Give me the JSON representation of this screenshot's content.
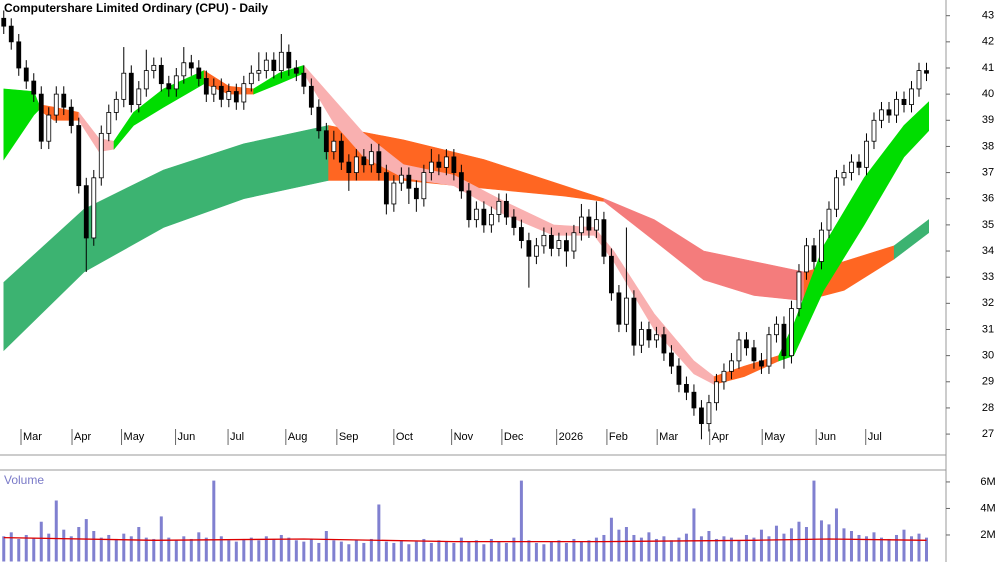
{
  "chart_data": [
    {
      "type": "candlestick",
      "title": "Computershare Limited Ordinary (CPU) - Daily",
      "xlim": [
        -0.5,
        125.6
      ],
      "ylim": [
        26.2,
        43.6
      ],
      "yticks": [
        27,
        28,
        29,
        30,
        31,
        32,
        33,
        34,
        35,
        36,
        37,
        38,
        39,
        40,
        41,
        42,
        43
      ],
      "xticks": [
        {
          "value": 2.3,
          "label": "Mar"
        },
        {
          "value": 9.1,
          "label": "Apr"
        },
        {
          "value": 15.7,
          "label": "May"
        },
        {
          "value": 22.9,
          "label": "Jun"
        },
        {
          "value": 29.9,
          "label": "Jul"
        },
        {
          "value": 37.6,
          "label": "Aug"
        },
        {
          "value": 44.4,
          "label": "Sep"
        },
        {
          "value": 52,
          "label": "Oct"
        },
        {
          "value": 59.7,
          "label": "Nov"
        },
        {
          "value": 66.4,
          "label": "Dec"
        },
        {
          "value": 73.7,
          "label": "2026"
        },
        {
          "value": 80.4,
          "label": "Feb"
        },
        {
          "value": 87.1,
          "label": "Mar"
        },
        {
          "value": 94.1,
          "label": "Apr"
        },
        {
          "value": 101.1,
          "label": "May"
        },
        {
          "value": 108.3,
          "label": "Jun"
        },
        {
          "value": 114.9,
          "label": "Jul"
        }
      ],
      "up_color": "#ffffff",
      "down_color": "#000000",
      "ohlc": [
        [
          42.9,
          43.2,
          42.3,
          42.6
        ],
        [
          42.6,
          42.9,
          41.7,
          42.0
        ],
        [
          42.0,
          42.3,
          40.7,
          41.0
        ],
        [
          41.0,
          41.3,
          40.2,
          40.5
        ],
        [
          40.5,
          40.8,
          39.7,
          40.0
        ],
        [
          40.0,
          40.3,
          37.9,
          38.2
        ],
        [
          38.2,
          39.5,
          37.9,
          39.2
        ],
        [
          39.2,
          40.3,
          38.9,
          40.0
        ],
        [
          40.0,
          40.3,
          39.2,
          39.5
        ],
        [
          39.5,
          39.8,
          38.5,
          38.8
        ],
        [
          38.8,
          39.1,
          36.2,
          36.5
        ],
        [
          36.5,
          36.8,
          33.2,
          34.5
        ],
        [
          34.5,
          37.1,
          34.2,
          36.8
        ],
        [
          36.8,
          38.8,
          36.5,
          38.5
        ],
        [
          38.5,
          39.6,
          38.2,
          39.3
        ],
        [
          39.3,
          40.1,
          39.0,
          39.8
        ],
        [
          39.8,
          41.8,
          39.5,
          40.8
        ],
        [
          40.8,
          41.1,
          39.3,
          39.6
        ],
        [
          39.6,
          40.5,
          39.3,
          40.2
        ],
        [
          40.2,
          41.7,
          39.9,
          40.9
        ],
        [
          40.9,
          41.4,
          40.6,
          41.1
        ],
        [
          41.1,
          41.4,
          40.1,
          40.4
        ],
        [
          40.4,
          40.7,
          39.9,
          40.2
        ],
        [
          40.2,
          41.0,
          39.9,
          40.7
        ],
        [
          40.7,
          41.8,
          40.4,
          41.2
        ],
        [
          41.2,
          41.5,
          40.7,
          41.0
        ],
        [
          41.0,
          41.3,
          40.3,
          40.6
        ],
        [
          40.6,
          40.9,
          39.7,
          40.0
        ],
        [
          40.0,
          40.6,
          39.7,
          40.3
        ],
        [
          40.3,
          40.6,
          39.5,
          39.8
        ],
        [
          39.8,
          40.4,
          39.5,
          40.1
        ],
        [
          40.1,
          40.4,
          39.4,
          39.7
        ],
        [
          39.7,
          40.7,
          39.4,
          40.4
        ],
        [
          40.4,
          41.1,
          40.1,
          40.8
        ],
        [
          40.8,
          41.6,
          40.5,
          40.9
        ],
        [
          40.9,
          41.6,
          40.6,
          41.3
        ],
        [
          41.3,
          41.6,
          40.6,
          40.9
        ],
        [
          40.9,
          42.3,
          40.6,
          41.6
        ],
        [
          41.6,
          41.9,
          40.7,
          41.0
        ],
        [
          41.0,
          41.3,
          40.5,
          40.8
        ],
        [
          40.8,
          41.1,
          40.0,
          40.3
        ],
        [
          40.3,
          40.6,
          39.2,
          39.5
        ],
        [
          39.5,
          39.8,
          38.3,
          38.6
        ],
        [
          38.6,
          38.9,
          37.5,
          37.8
        ],
        [
          37.8,
          38.6,
          37.5,
          38.2
        ],
        [
          38.2,
          38.5,
          37.1,
          37.4
        ],
        [
          37.4,
          37.7,
          36.3,
          37.0
        ],
        [
          37.0,
          37.9,
          36.7,
          37.6
        ],
        [
          37.6,
          37.9,
          37.0,
          37.3
        ],
        [
          37.3,
          38.1,
          37.0,
          37.8
        ],
        [
          37.8,
          38.1,
          36.7,
          37.0
        ],
        [
          37.0,
          37.3,
          35.4,
          35.8
        ],
        [
          35.8,
          36.9,
          35.5,
          36.6
        ],
        [
          36.6,
          37.2,
          36.3,
          36.9
        ],
        [
          36.9,
          37.2,
          35.8,
          36.4
        ],
        [
          36.4,
          36.7,
          35.5,
          36.0
        ],
        [
          36.0,
          37.3,
          35.7,
          37.0
        ],
        [
          37.0,
          37.9,
          36.7,
          37.4
        ],
        [
          37.4,
          37.7,
          36.9,
          37.2
        ],
        [
          37.2,
          37.9,
          36.9,
          37.6
        ],
        [
          37.6,
          37.9,
          36.7,
          37.0
        ],
        [
          37.0,
          37.3,
          36.0,
          36.3
        ],
        [
          36.3,
          36.6,
          34.9,
          35.2
        ],
        [
          35.2,
          35.9,
          34.9,
          35.6
        ],
        [
          35.6,
          35.9,
          34.7,
          35.0
        ],
        [
          35.0,
          35.7,
          34.7,
          35.4
        ],
        [
          35.4,
          36.2,
          35.1,
          35.9
        ],
        [
          35.9,
          36.2,
          35.0,
          35.3
        ],
        [
          35.3,
          35.6,
          34.6,
          34.9
        ],
        [
          34.9,
          35.2,
          34.1,
          34.4
        ],
        [
          34.4,
          34.7,
          32.6,
          33.8
        ],
        [
          33.8,
          34.5,
          33.5,
          34.2
        ],
        [
          34.2,
          34.9,
          33.9,
          34.6
        ],
        [
          34.6,
          34.9,
          33.8,
          34.1
        ],
        [
          34.1,
          34.7,
          33.8,
          34.4
        ],
        [
          34.4,
          34.7,
          33.4,
          34.0
        ],
        [
          34.0,
          35.0,
          33.7,
          34.7
        ],
        [
          34.7,
          35.8,
          34.4,
          35.3
        ],
        [
          35.3,
          35.6,
          34.5,
          34.8
        ],
        [
          34.8,
          35.9,
          34.5,
          35.2
        ],
        [
          35.2,
          35.5,
          33.5,
          33.8
        ],
        [
          33.8,
          34.1,
          32.1,
          32.4
        ],
        [
          32.4,
          32.7,
          30.9,
          31.2
        ],
        [
          31.2,
          34.9,
          30.9,
          32.2
        ],
        [
          32.2,
          32.5,
          30.0,
          30.4
        ],
        [
          30.4,
          31.3,
          30.1,
          31.0
        ],
        [
          31.0,
          31.3,
          30.3,
          30.6
        ],
        [
          30.6,
          31.1,
          30.3,
          30.8
        ],
        [
          30.8,
          31.1,
          29.8,
          30.1
        ],
        [
          30.1,
          30.4,
          29.3,
          29.6
        ],
        [
          29.6,
          29.9,
          28.6,
          28.9
        ],
        [
          28.9,
          29.2,
          28.3,
          28.6
        ],
        [
          28.6,
          28.9,
          27.7,
          28.0
        ],
        [
          28.0,
          28.3,
          26.8,
          27.4
        ],
        [
          27.4,
          28.5,
          27.1,
          28.2
        ],
        [
          28.2,
          29.3,
          27.9,
          29.0
        ],
        [
          29.0,
          29.7,
          28.7,
          29.4
        ],
        [
          29.4,
          30.1,
          29.1,
          29.8
        ],
        [
          29.8,
          30.9,
          29.5,
          30.6
        ],
        [
          30.6,
          30.9,
          30.0,
          30.3
        ],
        [
          30.3,
          30.6,
          29.5,
          29.8
        ],
        [
          29.8,
          30.1,
          29.3,
          29.6
        ],
        [
          29.6,
          31.1,
          29.3,
          30.8
        ],
        [
          30.8,
          31.5,
          30.5,
          31.2
        ],
        [
          31.2,
          31.5,
          29.5,
          30.0
        ],
        [
          30.0,
          32.1,
          29.7,
          31.8
        ],
        [
          31.8,
          33.5,
          31.5,
          33.2
        ],
        [
          33.2,
          34.5,
          32.9,
          34.2
        ],
        [
          34.2,
          34.5,
          33.3,
          33.6
        ],
        [
          33.6,
          35.1,
          33.3,
          34.8
        ],
        [
          34.8,
          35.9,
          34.5,
          35.6
        ],
        [
          35.6,
          37.1,
          35.3,
          36.8
        ],
        [
          36.8,
          37.3,
          36.5,
          37.0
        ],
        [
          37.0,
          37.7,
          36.7,
          37.4
        ],
        [
          37.4,
          37.7,
          36.9,
          37.2
        ],
        [
          37.2,
          38.5,
          36.9,
          38.2
        ],
        [
          38.2,
          39.3,
          37.9,
          39.0
        ],
        [
          39.0,
          39.7,
          38.7,
          39.4
        ],
        [
          39.4,
          39.7,
          38.9,
          39.2
        ],
        [
          39.2,
          40.1,
          38.9,
          39.8
        ],
        [
          39.8,
          40.1,
          39.3,
          39.6
        ],
        [
          39.6,
          40.5,
          39.3,
          40.2
        ],
        [
          40.2,
          41.2,
          39.9,
          40.9
        ],
        [
          40.9,
          41.2,
          40.5,
          40.8
        ]
      ],
      "ribbons": [
        {
          "color": "#3cb371",
          "x": [
            0,
            10.7,
            21.3,
            32,
            43.3
          ],
          "upper": [
            32.8,
            35.6,
            37.1,
            38.1,
            38.8
          ],
          "lower": [
            30.2,
            33.2,
            34.9,
            36.0,
            36.7
          ]
        },
        {
          "color": "#ff6622",
          "x": [
            43.3,
            53.3,
            64,
            74.7,
            80
          ],
          "upper": [
            38.8,
            38.25,
            37.5,
            36.5,
            36.0
          ],
          "lower": [
            36.7,
            36.7,
            36.4,
            36.1,
            35.9
          ]
        },
        {
          "color": "#f47c7c",
          "x": [
            80,
            86.7,
            93.3,
            100,
            106.7
          ],
          "upper": [
            36.0,
            35.2,
            34.0,
            33.6,
            33.2
          ],
          "lower": [
            35.9,
            34.4,
            32.9,
            32.3,
            32.1
          ]
        },
        {
          "color": "#ff6622",
          "x": [
            106.7,
            112,
            118.7
          ],
          "upper": [
            33.2,
            33.6,
            34.2
          ],
          "lower": [
            32.1,
            32.5,
            33.7
          ]
        },
        {
          "color": "#3cb371",
          "x": [
            118.7,
            123.3
          ],
          "upper": [
            34.2,
            35.2
          ],
          "lower": [
            33.7,
            34.7
          ]
        },
        {
          "color": "#00dd00",
          "x": [
            0,
            4,
            4.7
          ],
          "upper": [
            40.2,
            40.1,
            39.6
          ],
          "lower": [
            37.5,
            39.2,
            39.4
          ]
        },
        {
          "color": "#ff6622",
          "x": [
            4.7,
            6.7,
            10
          ],
          "upper": [
            39.6,
            39.5,
            39.3
          ],
          "lower": [
            39.4,
            39.0,
            39.0
          ]
        },
        {
          "color": "#f9b0b0",
          "x": [
            10,
            12.7,
            14.7
          ],
          "upper": [
            39.3,
            38.3,
            38.2
          ],
          "lower": [
            39.0,
            37.8,
            37.9
          ]
        },
        {
          "color": "#00dd00",
          "x": [
            14.7,
            17.3,
            21.3,
            26.7
          ],
          "upper": [
            38.2,
            39.3,
            40.2,
            40.9
          ],
          "lower": [
            37.9,
            38.8,
            39.5,
            40.4
          ]
        },
        {
          "color": "#ff6622",
          "x": [
            26.7,
            30,
            33.3
          ],
          "upper": [
            40.9,
            40.3,
            40.2
          ],
          "lower": [
            40.4,
            40.0,
            40.0
          ]
        },
        {
          "color": "#00dd00",
          "x": [
            33.3,
            36.7,
            40
          ],
          "upper": [
            40.2,
            40.8,
            41.1
          ],
          "lower": [
            40.0,
            40.4,
            40.8
          ]
        },
        {
          "color": "#f9b0b0",
          "x": [
            40,
            44,
            48,
            53.3,
            60,
            66.7,
            73.3,
            78.7,
            81.3,
            86.7,
            92,
            94.7
          ],
          "upper": [
            41.1,
            39.8,
            38.5,
            37.3,
            36.9,
            35.9,
            35.0,
            34.9,
            34.0,
            31.6,
            29.8,
            29.2
          ],
          "lower": [
            40.8,
            38.9,
            37.6,
            36.8,
            36.5,
            35.4,
            34.6,
            34.6,
            33.6,
            31.0,
            29.3,
            28.9
          ]
        },
        {
          "color": "#ff6622",
          "x": [
            94.7,
            98.7,
            103.3
          ],
          "upper": [
            29.2,
            29.6,
            30.0
          ],
          "lower": [
            28.9,
            29.2,
            29.8
          ]
        },
        {
          "color": "#00dd00",
          "x": [
            103.3,
            105.3,
            109.3,
            114.7,
            120,
            123.3
          ],
          "upper": [
            30.0,
            31.2,
            34.2,
            36.8,
            38.8,
            39.7
          ],
          "lower": [
            29.8,
            30.0,
            32.5,
            35.0,
            37.6,
            38.6
          ]
        }
      ]
    },
    {
      "type": "bar",
      "title": "Volume",
      "xlim": [
        -0.5,
        125.6
      ],
      "ylim": [
        0,
        6.9
      ],
      "yticks": [
        {
          "value": 2,
          "label": "2M"
        },
        {
          "value": 4,
          "label": "4M"
        },
        {
          "value": 6,
          "label": "6M"
        }
      ],
      "color": "#8080d0",
      "values": [
        1.9,
        2.2,
        1.7,
        2.0,
        1.8,
        3.0,
        2.1,
        4.6,
        2.4,
        1.9,
        2.6,
        3.2,
        2.3,
        1.8,
        2.0,
        1.7,
        2.1,
        1.9,
        2.6,
        1.8,
        1.7,
        3.4,
        1.8,
        1.6,
        1.9,
        1.7,
        2.2,
        1.8,
        6.1,
        1.9,
        1.6,
        1.5,
        1.7,
        1.8,
        1.6,
        1.9,
        1.7,
        2.0,
        1.8,
        1.6,
        1.5,
        1.7,
        1.4,
        2.3,
        1.6,
        1.5,
        1.3,
        1.6,
        1.4,
        1.7,
        4.3,
        1.5,
        1.4,
        1.6,
        1.3,
        1.5,
        1.7,
        1.4,
        1.6,
        1.5,
        1.4,
        1.8,
        1.5,
        1.6,
        1.3,
        1.7,
        1.5,
        1.4,
        1.8,
        6.1,
        1.6,
        1.4,
        1.3,
        1.5,
        1.6,
        1.4,
        1.7,
        1.5,
        1.6,
        1.8,
        2.0,
        3.3,
        2.4,
        2.6,
        2.0,
        1.8,
        2.2,
        1.7,
        1.9,
        1.6,
        1.8,
        2.1,
        4.0,
        1.9,
        2.3,
        1.7,
        1.9,
        1.8,
        1.6,
        2.0,
        1.8,
        2.4,
        1.9,
        2.7,
        2.1,
        2.5,
        3.0,
        2.6,
        6.1,
        3.1,
        2.8,
        4.0,
        2.5,
        2.3,
        2.0,
        1.9,
        2.2,
        1.8,
        1.7,
        2.0,
        2.4,
        1.9,
        2.1,
        1.8
      ],
      "average": {
        "color": "#dd0000",
        "x": [
          0,
          20,
          40,
          60,
          80,
          100,
          110,
          123
        ],
        "values": [
          1.8,
          1.6,
          1.7,
          1.5,
          1.5,
          1.6,
          1.7,
          1.6
        ]
      }
    }
  ]
}
